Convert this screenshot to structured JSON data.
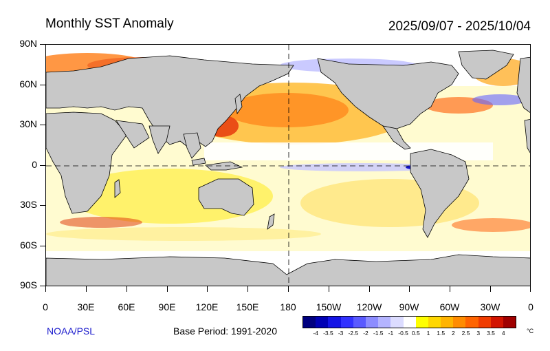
{
  "header": {
    "title": "Monthly SST Anomaly",
    "date_range": "2025/09/07 - 2025/10/04"
  },
  "map": {
    "lat_labels": [
      "90N",
      "60N",
      "30N",
      "0",
      "30S",
      "60S",
      "90S"
    ],
    "lon_labels": [
      "0",
      "30E",
      "60E",
      "90E",
      "120E",
      "150E",
      "180",
      "150W",
      "120W",
      "90W",
      "60W",
      "30W",
      "0"
    ],
    "land_color": "#c8c8c8",
    "ocean_neutral_color": "#ffffff"
  },
  "footer": {
    "source": "NOAA/PSL",
    "base_period": "Base Period: 1991-2020"
  },
  "colorbar": {
    "labels": [
      "-4",
      "-3.5",
      "-3",
      "-2.5",
      "-2",
      "-1.5",
      "-1",
      "-0.5",
      "0.5",
      "1",
      "1.5",
      "2",
      "2.5",
      "3",
      "3.5",
      "4"
    ],
    "unit": "°C",
    "colors": [
      "#00007f",
      "#0000b4",
      "#1414e6",
      "#3232ff",
      "#5a5aff",
      "#8c8cff",
      "#b4b4ff",
      "#dcdcff",
      "#ffffff",
      "#ffff00",
      "#ffd700",
      "#ffb400",
      "#ff8c00",
      "#ff6400",
      "#f03c00",
      "#d21400",
      "#a00000"
    ]
  }
}
